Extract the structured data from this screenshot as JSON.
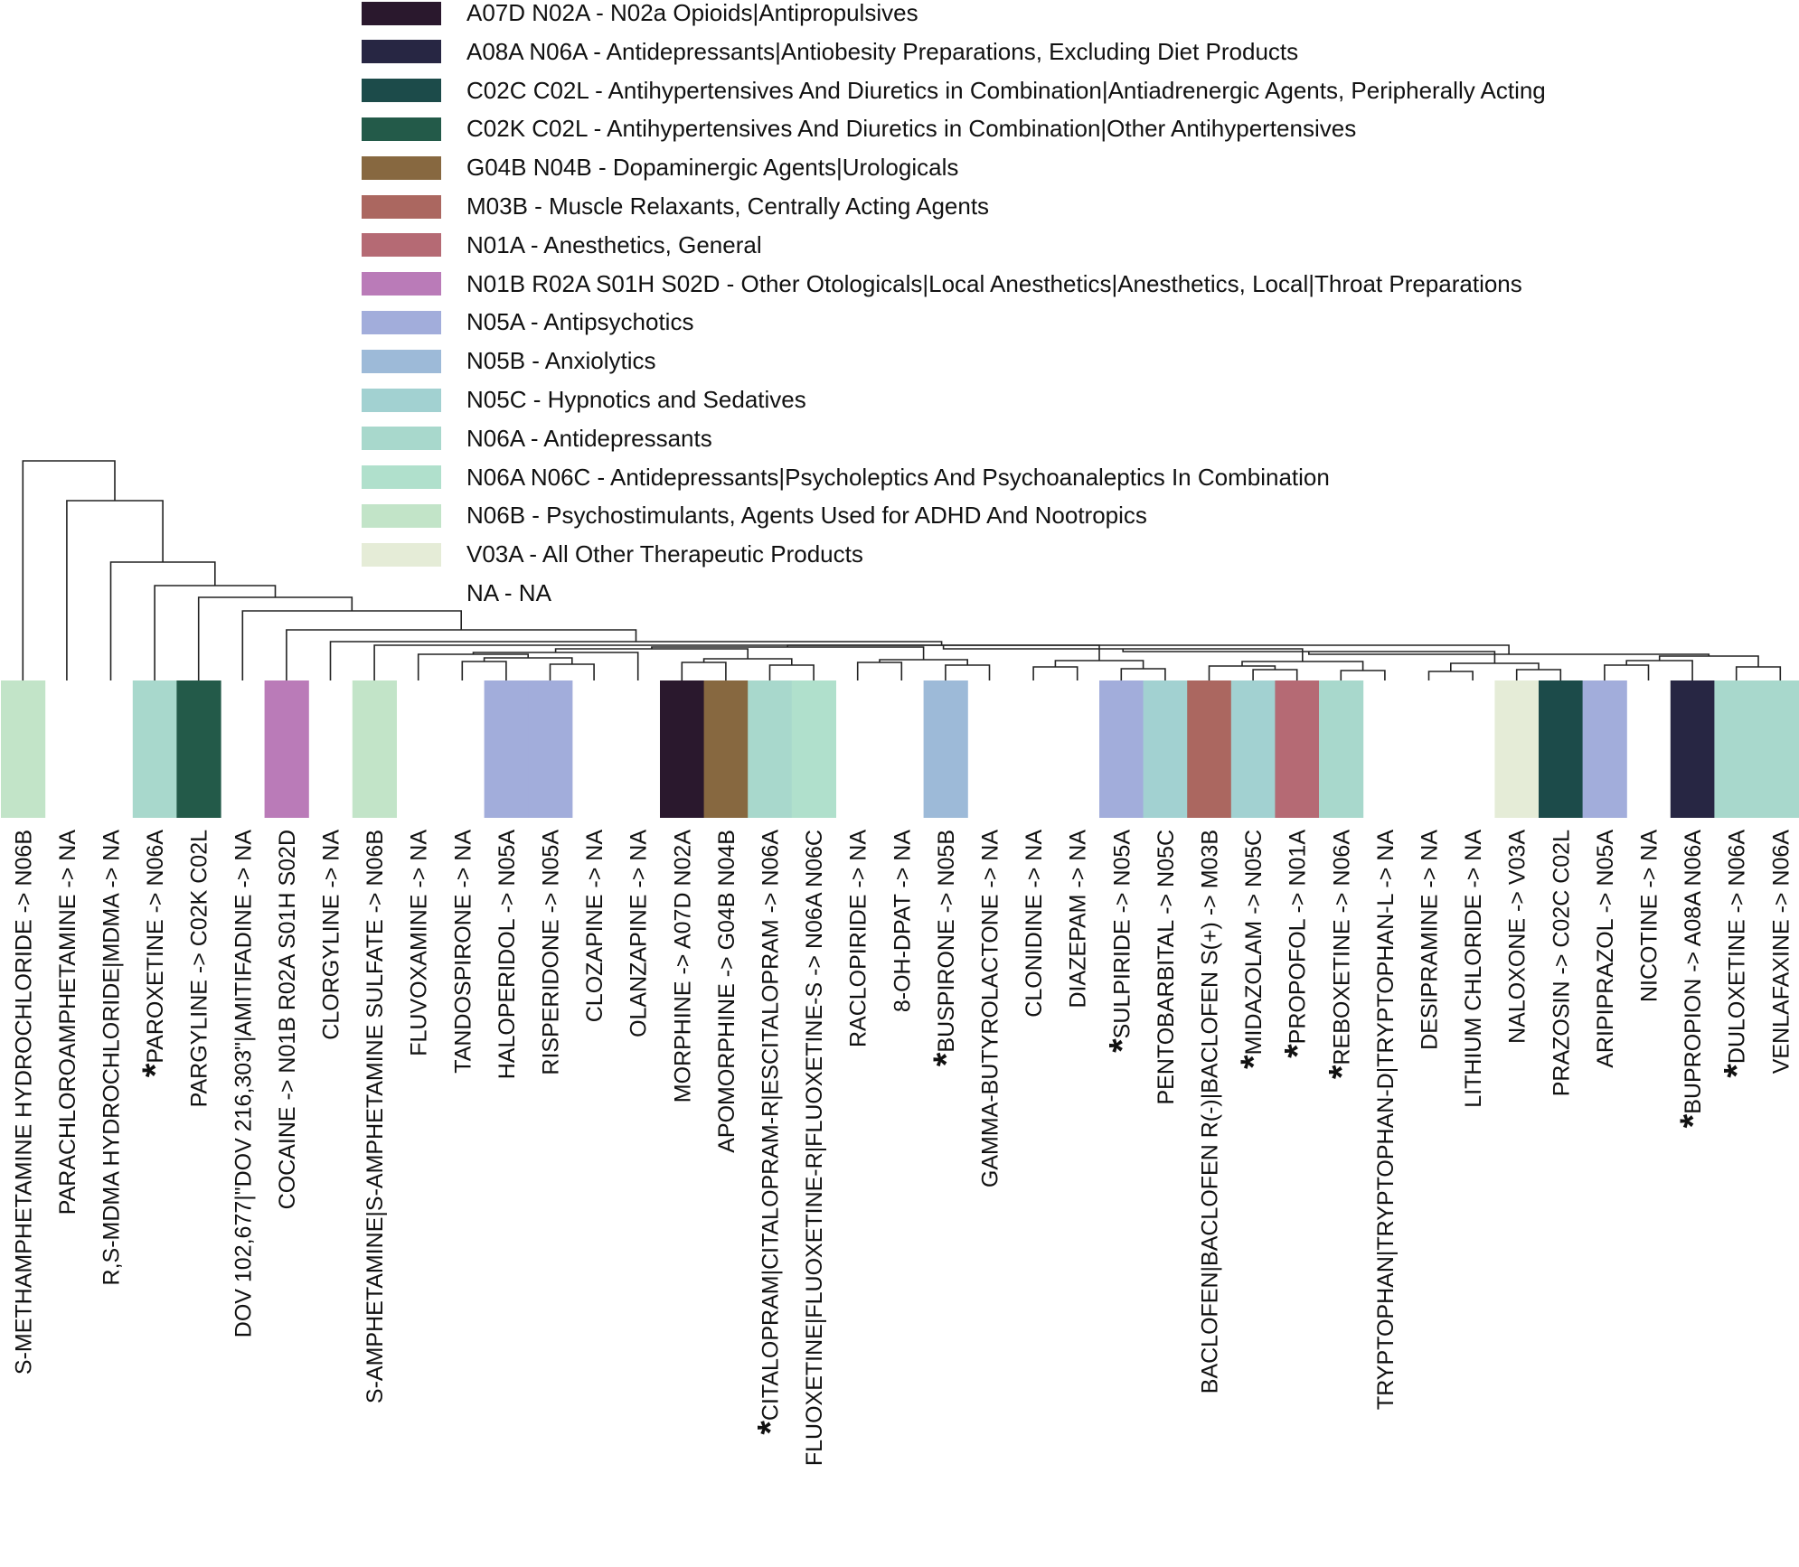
{
  "legend": [
    {
      "label": "A07D N02A - N02a Opioids|Antipropulsives",
      "color": "#2a182d"
    },
    {
      "label": "A08A N06A - Antidepressants|Antiobesity Preparations, Excluding Diet Products",
      "color": "#272643"
    },
    {
      "label": "C02C C02L - Antihypertensives And Diuretics in Combination|Antiadrenergic Agents, Peripherally Acting",
      "color": "#1c4b4a"
    },
    {
      "label": "C02K C02L - Antihypertensives And Diuretics in Combination|Other Antihypertensives",
      "color": "#235a49"
    },
    {
      "label": "G04B N04B - Dopaminergic Agents|Urologicals",
      "color": "#876840"
    },
    {
      "label": "M03B - Muscle Relaxants, Centrally Acting Agents",
      "color": "#ab6760"
    },
    {
      "label": "N01A - Anesthetics, General",
      "color": "#b56a74"
    },
    {
      "label": "N01B R02A S01H S02D - Other Otologicals|Local Anesthetics|Anesthetics, Local|Throat Preparations",
      "color": "#ba7bb8"
    },
    {
      "label": "N05A - Antipsychotics",
      "color": "#a2addb"
    },
    {
      "label": "N05B - Anxiolytics",
      "color": "#9dbad8"
    },
    {
      "label": "N05C - Hypnotics and Sedatives",
      "color": "#a2d1d1"
    },
    {
      "label": "N06A - Antidepressants",
      "color": "#a8d8cc"
    },
    {
      "label": "N06A N06C - Antidepressants|Psycholeptics And Psychoanaleptics In Combination",
      "color": "#b0e0cc"
    },
    {
      "label": "N06B - Psychostimulants, Agents Used for ADHD And Nootropics",
      "color": "#c2e4c8"
    },
    {
      "label": "V03A - All Other Therapeutic Products",
      "color": "#e5ecd7"
    },
    {
      "label": "NA - NA",
      "color": ""
    }
  ],
  "leaves": [
    {
      "label": "S-METHAMPHETAMINE HYDROCHLORIDE -> N06B",
      "color": "#c2e4c8",
      "starred": false
    },
    {
      "label": "PARACHLOROAMPHETAMINE -> NA",
      "color": "",
      "starred": false
    },
    {
      "label": "R,S-MDMA HYDROCHLORIDE|MDMA -> NA",
      "color": "",
      "starred": false
    },
    {
      "label": "PAROXETINE -> N06A",
      "color": "#a8d8cc",
      "starred": true
    },
    {
      "label": "PARGYLINE -> C02K C02L",
      "color": "#235a49",
      "starred": false
    },
    {
      "label": "DOV 102,677|\"DOV 216,303\"|AMITIFADINE -> NA",
      "color": "",
      "starred": false
    },
    {
      "label": "COCAINE -> N01B R02A S01H S02D",
      "color": "#ba7bb8",
      "starred": false
    },
    {
      "label": "CLORGYLINE -> NA",
      "color": "",
      "starred": false
    },
    {
      "label": "S-AMPHETAMINE|S-AMPHETAMINE SULFATE -> N06B",
      "color": "#c2e4c8",
      "starred": false
    },
    {
      "label": "FLUVOXAMINE -> NA",
      "color": "",
      "starred": false
    },
    {
      "label": "TANDOSPIRONE -> NA",
      "color": "",
      "starred": false
    },
    {
      "label": "HALOPERIDOL -> N05A",
      "color": "#a2addb",
      "starred": false
    },
    {
      "label": "RISPERIDONE -> N05A",
      "color": "#a2addb",
      "starred": false
    },
    {
      "label": "CLOZAPINE -> NA",
      "color": "",
      "starred": false
    },
    {
      "label": "OLANZAPINE -> NA",
      "color": "",
      "starred": false
    },
    {
      "label": "MORPHINE -> A07D N02A",
      "color": "#2a182d",
      "starred": false
    },
    {
      "label": "APOMORPHINE -> G04B N04B",
      "color": "#876840",
      "starred": false
    },
    {
      "label": "CITALOPRAM|CITALOPRAM-R|ESCITALOPRAM -> N06A",
      "color": "#a8d8cc",
      "starred": true
    },
    {
      "label": "FLUOXETINE|FLUOXETINE-R|FLUOXETINE-S -> N06A N06C",
      "color": "#b0e0cc",
      "starred": false
    },
    {
      "label": "RACLOPIRIDE -> NA",
      "color": "",
      "starred": false
    },
    {
      "label": "8-OH-DPAT -> NA",
      "color": "",
      "starred": false
    },
    {
      "label": "BUSPIRONE -> N05B",
      "color": "#9dbad8",
      "starred": true
    },
    {
      "label": "GAMMA-BUTYROLACTONE -> NA",
      "color": "",
      "starred": false
    },
    {
      "label": "CLONIDINE -> NA",
      "color": "",
      "starred": false
    },
    {
      "label": "DIAZEPAM -> NA",
      "color": "",
      "starred": false
    },
    {
      "label": "SULPIRIDE -> N05A",
      "color": "#a2addb",
      "starred": true
    },
    {
      "label": "PENTOBARBITAL -> N05C",
      "color": "#a2d1d1",
      "starred": false
    },
    {
      "label": "BACLOFEN|BACLOFEN R(-)|BACLOFEN S(+) -> M03B",
      "color": "#ab6760",
      "starred": false
    },
    {
      "label": "MIDAZOLAM -> N05C",
      "color": "#a2d1d1",
      "starred": true
    },
    {
      "label": "PROPOFOL -> N01A",
      "color": "#b56a74",
      "starred": true
    },
    {
      "label": "REBOXETINE -> N06A",
      "color": "#a8d8cc",
      "starred": true
    },
    {
      "label": "TRYPTOPHAN|TRYPTOPHAN-D|TRYPTOPHAN-L -> NA",
      "color": "",
      "starred": false
    },
    {
      "label": "DESIPRAMINE -> NA",
      "color": "",
      "starred": false
    },
    {
      "label": "LITHIUM CHLORIDE -> NA",
      "color": "",
      "starred": false
    },
    {
      "label": "NALOXONE -> V03A",
      "color": "#e5ecd7",
      "starred": false
    },
    {
      "label": "PRAZOSIN -> C02C C02L",
      "color": "#1c4b4a",
      "starred": false
    },
    {
      "label": "ARIPIPRAZOL -> N05A",
      "color": "#a2addb",
      "starred": false
    },
    {
      "label": "NICOTINE -> NA",
      "color": "",
      "starred": false
    },
    {
      "label": "BUPROPION -> A08A N06A",
      "color": "#272643",
      "starred": true
    },
    {
      "label": "DULOXETINE -> N06A",
      "color": "#a8d8cc",
      "starred": true
    },
    {
      "label": "VENLAFAXINE -> N06A",
      "color": "#a8d8cc",
      "starred": false
    }
  ]
}
